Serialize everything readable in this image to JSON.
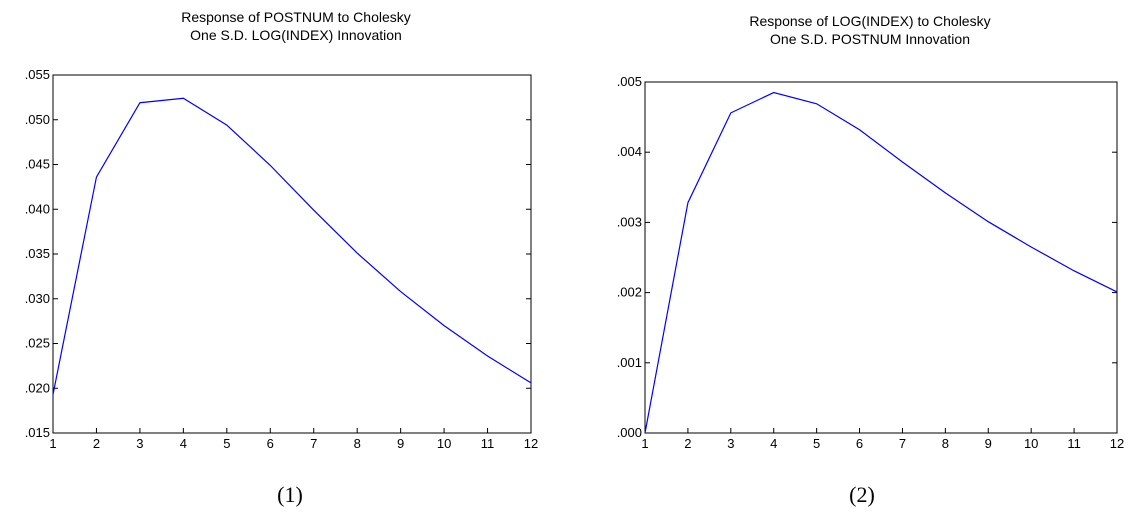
{
  "chart_data": [
    {
      "type": "line",
      "title": "Response of POSTNUM to Cholesky",
      "subtitle": "One S.D. LOG(INDEX) Innovation",
      "caption": "(1)",
      "x": [
        1,
        2,
        3,
        4,
        5,
        6,
        7,
        8,
        9,
        10,
        11,
        12
      ],
      "xticks": [
        "1",
        "2",
        "3",
        "4",
        "5",
        "6",
        "7",
        "8",
        "9",
        "10",
        "11",
        "12"
      ],
      "xlim": [
        1,
        12
      ],
      "ylim": [
        0.015,
        0.055
      ],
      "yticks": [
        0.015,
        0.02,
        0.025,
        0.03,
        0.035,
        0.04,
        0.045,
        0.05,
        0.055
      ],
      "ytick_labels": [
        ".015",
        ".020",
        ".025",
        ".030",
        ".035",
        ".040",
        ".045",
        ".050",
        ".055"
      ],
      "series": [
        {
          "values": [
            0.0193,
            0.0436,
            0.0519,
            0.0524,
            0.0494,
            0.0449,
            0.0399,
            0.0351,
            0.0308,
            0.027,
            0.0236,
            0.0206
          ]
        }
      ],
      "line_color": "#0000ff",
      "grid": false
    },
    {
      "type": "line",
      "title": "Response of LOG(INDEX) to Cholesky",
      "subtitle": "One S.D. POSTNUM Innovation",
      "caption": "(2)",
      "x": [
        1,
        2,
        3,
        4,
        5,
        6,
        7,
        8,
        9,
        10,
        11,
        12
      ],
      "xticks": [
        "1",
        "2",
        "3",
        "4",
        "5",
        "6",
        "7",
        "8",
        "9",
        "10",
        "11",
        "12"
      ],
      "xlim": [
        1,
        12
      ],
      "ylim": [
        0.0,
        0.005
      ],
      "yticks": [
        0.0,
        0.001,
        0.002,
        0.003,
        0.004,
        0.005
      ],
      "ytick_labels": [
        ".000",
        ".001",
        ".002",
        ".003",
        ".004",
        ".005"
      ],
      "series": [
        {
          "values": [
            0.0,
            0.00328,
            0.00456,
            0.00485,
            0.00469,
            0.00432,
            0.00386,
            0.00342,
            0.00301,
            0.00265,
            0.00231,
            0.00201
          ]
        }
      ],
      "line_color": "#0000ff",
      "grid": false
    }
  ]
}
